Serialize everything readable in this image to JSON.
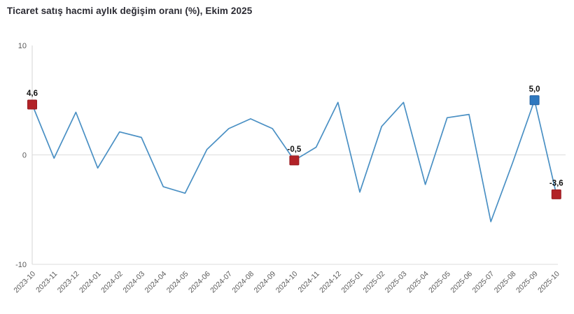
{
  "header": {
    "title": "Ticaret satış hacmi aylık değişim oranı (%), Ekim 2025"
  },
  "chart_data": {
    "type": "line",
    "title": "Ticaret satış hacmi aylık değişim oranı (%), Ekim 2025",
    "xlabel": "",
    "ylabel": "",
    "ylim": [
      -10,
      10
    ],
    "yticks": [
      "10",
      "0",
      "-10"
    ],
    "ytick_values": [
      10,
      0,
      -10
    ],
    "grid": "horizontal line at 0 and bottom border only",
    "legend_position": "none",
    "categories": [
      "2023-10",
      "2023-11",
      "2023-12",
      "2024-01",
      "2024-02",
      "2024-03",
      "2024-04",
      "2024-05",
      "2024-06",
      "2024-07",
      "2024-08",
      "2024-09",
      "2024-10",
      "2024-11",
      "2024-12",
      "2025-01",
      "2025-02",
      "2025-03",
      "2025-04",
      "2025-05",
      "2025-06",
      "2025-07",
      "2025-08",
      "2025-09",
      "2025-10"
    ],
    "values": [
      4.6,
      -0.3,
      3.9,
      -1.2,
      2.1,
      1.6,
      -2.9,
      -3.5,
      0.5,
      2.4,
      3.3,
      2.4,
      -0.5,
      0.7,
      4.8,
      -3.4,
      2.6,
      4.8,
      -2.7,
      3.4,
      3.7,
      -6.1,
      -0.7,
      5.0,
      -3.6
    ],
    "annotated_points": [
      {
        "category": "2023-10",
        "value": 4.6,
        "label": "4,6",
        "marker_color": "#b22227",
        "marker_border": "#971c21"
      },
      {
        "category": "2024-10",
        "value": -0.5,
        "label": "-0,5",
        "marker_color": "#b22227",
        "marker_border": "#971c21"
      },
      {
        "category": "2025-09",
        "value": 5.0,
        "label": "5,0",
        "marker_color": "#2e78bf",
        "marker_border": "#2361a0"
      },
      {
        "category": "2025-10",
        "value": -3.6,
        "label": "-3,6",
        "marker_color": "#b22227",
        "marker_border": "#971c21"
      }
    ]
  },
  "colors": {
    "line": "#4a90c4",
    "gridline": "#dcdcdc",
    "axis_line": "#d6d6d6",
    "tick_label": "#595959",
    "data_label": "#111111",
    "title": "#2b2b33",
    "background": "#ffffff"
  }
}
